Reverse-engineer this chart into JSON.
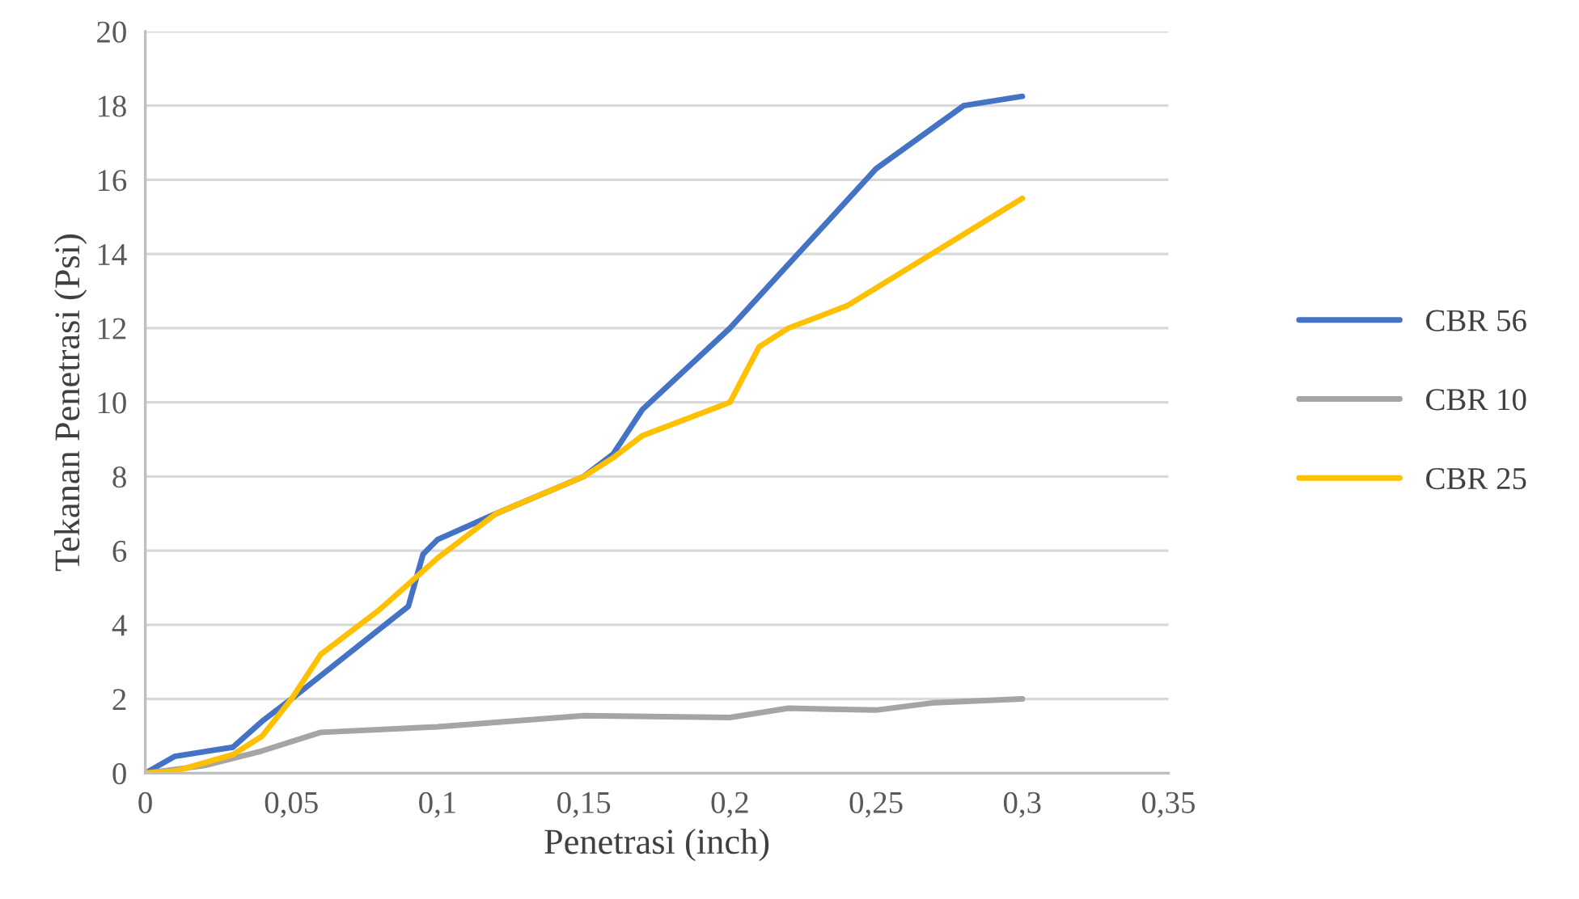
{
  "chart_data": {
    "type": "line",
    "xlabel": "Penetrasi (inch)",
    "ylabel": "Tekanan Penetrasi (Psi)",
    "xlim": [
      0,
      0.35
    ],
    "xticks": [
      0,
      {
        "value": 0.05,
        "label": "0,05"
      },
      {
        "value": 0.1,
        "label": "0,1"
      },
      {
        "value": 0.15,
        "label": "0,15"
      },
      {
        "value": 0.2,
        "label": "0,2"
      },
      {
        "value": 0.25,
        "label": "0,25"
      },
      {
        "value": 0.3,
        "label": "0,3"
      },
      {
        "value": 0.35,
        "label": "0,35"
      }
    ],
    "ylim": [
      0,
      20
    ],
    "yticks": [
      0,
      2,
      4,
      6,
      8,
      10,
      12,
      14,
      16,
      18,
      20
    ],
    "grid": "y",
    "legend": "right",
    "marker": "none",
    "line_style": "solid",
    "series": [
      {
        "name": "CBR 56",
        "color": "#4472c4",
        "x": [
          0,
          0.01,
          0.03,
          0.04,
          0.05,
          0.09,
          0.095,
          0.1,
          0.12,
          0.15,
          0.16,
          0.17,
          0.2,
          0.25,
          0.28,
          0.3
        ],
        "values": [
          0,
          0.45,
          0.7,
          1.4,
          2.0,
          4.5,
          5.9,
          6.3,
          7.0,
          8.0,
          8.6,
          9.8,
          12.0,
          16.3,
          18.0,
          18.25
        ]
      },
      {
        "name": "CBR 10",
        "color": "#a5a5a5",
        "x": [
          0,
          0.02,
          0.04,
          0.06,
          0.1,
          0.15,
          0.2,
          0.22,
          0.25,
          0.27,
          0.3
        ],
        "values": [
          0,
          0.2,
          0.6,
          1.1,
          1.25,
          1.55,
          1.5,
          1.75,
          1.7,
          1.9,
          2.0
        ]
      },
      {
        "name": "CBR 25",
        "color": "#ffc000",
        "x": [
          0,
          0.01,
          0.03,
          0.04,
          0.05,
          0.06,
          0.08,
          0.1,
          0.12,
          0.15,
          0.16,
          0.17,
          0.2,
          0.21,
          0.22,
          0.24,
          0.3
        ],
        "values": [
          0,
          0.05,
          0.5,
          1.0,
          2.0,
          3.2,
          4.4,
          5.8,
          7.0,
          8.0,
          8.5,
          9.1,
          10.0,
          11.5,
          12.0,
          12.6,
          15.5
        ]
      }
    ]
  }
}
